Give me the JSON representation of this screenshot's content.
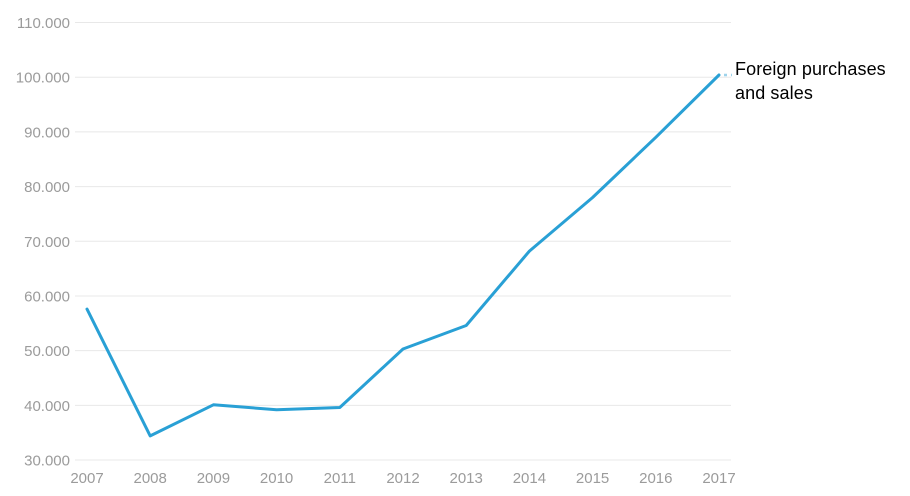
{
  "chart_data": {
    "type": "line",
    "title": "",
    "xlabel": "",
    "ylabel": "",
    "x": [
      "2007",
      "2008",
      "2009",
      "2010",
      "2011",
      "2012",
      "2013",
      "2014",
      "2015",
      "2016",
      "2017"
    ],
    "series": [
      {
        "name": "Foreign purchases and sales",
        "values": [
          57600,
          34400,
          40100,
          39200,
          39600,
          50300,
          54600,
          68200,
          78000,
          89000,
          100400
        ]
      }
    ],
    "ylim": [
      30000,
      110000
    ],
    "ytick_step": 10000,
    "ytick_labels": [
      "30.000",
      "40.000",
      "50.000",
      "60.000",
      "70.000",
      "80.000",
      "90.000",
      "100.000",
      "110.000"
    ],
    "grid": "horizontal-only",
    "legend_position": "annotation-at-line-end",
    "annotation": {
      "line1": "Foreign purchases",
      "line2": "and sales"
    },
    "colors": {
      "line": "#29a0d5",
      "grid": "#e8e8e8",
      "axis_text": "#9b9b9b",
      "annotation_text": "#000000",
      "background": "#ffffff"
    }
  }
}
